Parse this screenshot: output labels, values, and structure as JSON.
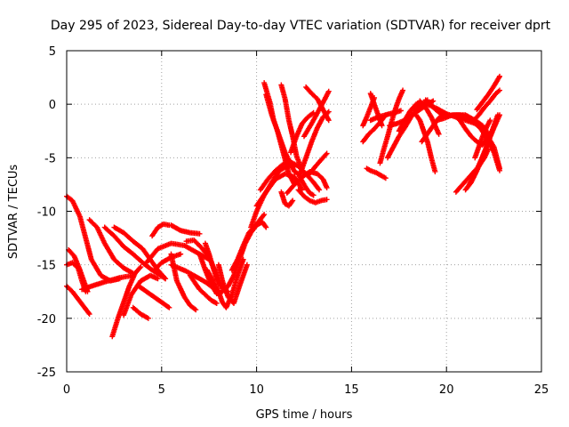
{
  "chart_data": {
    "type": "scatter",
    "title": "Day 295 of 2023, Sidereal Day-to-day VTEC variation (SDTVAR) for receiver dprt",
    "xlabel": "GPS time / hours",
    "ylabel": "SDTVAR / TECUs",
    "xlim": [
      0,
      25
    ],
    "ylim": [
      -25,
      5
    ],
    "xticks": [
      "0",
      "5",
      "10",
      "15",
      "20",
      "25"
    ],
    "yticks": [
      "-25",
      "-20",
      "-15",
      "-10",
      "-5",
      "0",
      "5"
    ],
    "grid": true,
    "legend": "none",
    "marker": "plus",
    "color": "#ff0000",
    "series": [
      {
        "x": [
          0.0,
          0.3,
          0.7,
          1.0,
          1.3,
          1.8,
          2.3,
          2.8
        ],
        "y": [
          -8.6,
          -9.0,
          -10.5,
          -12.5,
          -14.5,
          -16.0,
          -16.5,
          -16.3
        ]
      },
      {
        "x": [
          0.0,
          0.3,
          0.6,
          0.9,
          1.2
        ],
        "y": [
          -17.0,
          -17.5,
          -18.2,
          -18.9,
          -19.6
        ]
      },
      {
        "x": [
          0.0,
          0.3,
          0.6,
          0.8,
          1.0
        ],
        "y": [
          -15.0,
          -14.8,
          -15.3,
          -16.5,
          -17.5
        ]
      },
      {
        "x": [
          0.1,
          0.4,
          0.7,
          0.9,
          1.1
        ],
        "y": [
          -13.6,
          -14.2,
          -15.5,
          -16.5,
          -17.5
        ]
      },
      {
        "x": [
          0.8,
          1.3,
          2.0,
          2.8,
          3.5
        ],
        "y": [
          -17.3,
          -17.0,
          -16.6,
          -16.2,
          -16.0
        ]
      },
      {
        "x": [
          1.2,
          1.6,
          2.0,
          2.5,
          3.0,
          3.5
        ],
        "y": [
          -10.8,
          -11.5,
          -13.0,
          -14.5,
          -15.3,
          -15.8
        ]
      },
      {
        "x": [
          2.0,
          2.5,
          3.0,
          3.5,
          4.0,
          4.5,
          5.2
        ],
        "y": [
          -11.5,
          -12.3,
          -13.3,
          -14.0,
          -14.8,
          -15.5,
          -16.3
        ]
      },
      {
        "x": [
          2.4,
          2.7,
          3.0,
          3.3,
          3.6,
          3.9
        ],
        "y": [
          -21.7,
          -20.0,
          -18.5,
          -17.0,
          -15.8,
          -15.2
        ]
      },
      {
        "x": [
          2.5,
          3.0,
          3.5,
          4.0,
          4.4,
          4.8,
          5.2
        ],
        "y": [
          -11.5,
          -12.0,
          -12.8,
          -13.5,
          -14.5,
          -15.5,
          -16.3
        ]
      },
      {
        "x": [
          3.0,
          3.4,
          3.9,
          4.4,
          4.8
        ],
        "y": [
          -19.7,
          -17.8,
          -16.5,
          -16.0,
          -16.3
        ]
      },
      {
        "x": [
          3.5,
          3.7,
          3.9,
          4.1,
          4.3
        ],
        "y": [
          -19.0,
          -19.3,
          -19.6,
          -19.8,
          -20.0
        ]
      },
      {
        "x": [
          3.8,
          4.2,
          4.6,
          5.0,
          5.4
        ],
        "y": [
          -17.0,
          -17.5,
          -18.0,
          -18.5,
          -19.0
        ]
      },
      {
        "x": [
          4.2,
          4.8,
          5.5,
          6.2,
          6.8,
          7.5
        ],
        "y": [
          -14.8,
          -13.5,
          -13.0,
          -13.2,
          -13.8,
          -14.5
        ]
      },
      {
        "x": [
          4.6,
          5.0,
          5.5,
          6.0
        ],
        "y": [
          -15.5,
          -14.8,
          -14.3,
          -14.0
        ]
      },
      {
        "x": [
          4.5,
          4.8,
          5.1,
          5.4
        ],
        "y": [
          -12.3,
          -11.5,
          -11.2,
          -11.3
        ]
      },
      {
        "x": [
          5.5,
          6.0,
          6.5,
          7.0
        ],
        "y": [
          -11.3,
          -11.8,
          -12.0,
          -12.1
        ]
      },
      {
        "x": [
          5.5,
          5.9,
          6.3,
          6.7,
          7.0,
          7.3,
          7.6
        ],
        "y": [
          -15.0,
          -15.3,
          -15.6,
          -16.0,
          -16.3,
          -16.6,
          -17.0
        ]
      },
      {
        "x": [
          5.5,
          5.8,
          6.2,
          6.5,
          6.8
        ],
        "y": [
          -14.0,
          -16.5,
          -18.0,
          -18.8,
          -19.2
        ]
      },
      {
        "x": [
          6.3,
          6.7,
          7.1,
          7.5,
          7.8,
          8.1
        ],
        "y": [
          -12.8,
          -12.7,
          -13.4,
          -14.3,
          -15.5,
          -17.0
        ]
      },
      {
        "x": [
          6.5,
          6.8,
          7.0,
          7.3,
          7.6,
          7.9
        ],
        "y": [
          -16.0,
          -16.8,
          -17.3,
          -17.8,
          -18.3,
          -18.6
        ]
      },
      {
        "x": [
          7.0,
          7.3,
          7.6,
          7.9,
          8.2,
          8.5
        ],
        "y": [
          -14.0,
          -15.5,
          -16.8,
          -17.7,
          -17.5,
          -17.0
        ]
      },
      {
        "x": [
          7.3,
          7.5,
          7.7,
          7.9,
          8.2,
          8.5
        ],
        "y": [
          -13.0,
          -14.0,
          -15.2,
          -16.3,
          -17.2,
          -17.5
        ]
      },
      {
        "x": [
          7.4,
          7.7,
          8.0,
          8.2,
          8.4,
          8.7,
          9.0,
          9.3
        ],
        "y": [
          -15.5,
          -16.5,
          -17.5,
          -18.5,
          -19.0,
          -17.8,
          -16.0,
          -14.5
        ]
      },
      {
        "x": [
          8.0,
          8.2,
          8.5,
          8.8,
          9.1,
          9.5
        ],
        "y": [
          -15.0,
          -16.5,
          -18.0,
          -18.6,
          -17.0,
          -15.0
        ]
      },
      {
        "x": [
          8.5,
          8.8,
          9.1,
          9.4,
          9.7,
          10.0,
          10.3,
          10.5
        ],
        "y": [
          -17.0,
          -16.0,
          -14.5,
          -13.0,
          -12.0,
          -11.3,
          -11.0,
          -11.5
        ]
      },
      {
        "x": [
          8.7,
          9.0,
          9.3,
          9.6,
          10.0,
          10.4
        ],
        "y": [
          -15.5,
          -14.5,
          -13.2,
          -12.0,
          -11.2,
          -10.3
        ]
      },
      {
        "x": [
          9.7,
          10.0,
          10.4,
          10.8,
          11.2,
          11.6,
          12.0
        ],
        "y": [
          -11.5,
          -10.0,
          -8.5,
          -7.3,
          -6.2,
          -5.8,
          -5.7
        ]
      },
      {
        "x": [
          10.0,
          10.5,
          11.0,
          11.5,
          12.0,
          12.4
        ],
        "y": [
          -9.5,
          -8.2,
          -7.0,
          -6.5,
          -6.8,
          -8.0
        ]
      },
      {
        "x": [
          10.2,
          10.6,
          11.0,
          11.4,
          11.8,
          12.2,
          12.6,
          13.0,
          13.3
        ],
        "y": [
          -8.0,
          -7.0,
          -6.2,
          -5.6,
          -5.4,
          -5.8,
          -6.5,
          -7.3,
          -8.0
        ]
      },
      {
        "x": [
          10.4,
          10.7,
          10.9,
          11.2,
          11.5,
          11.8,
          12.0
        ],
        "y": [
          2.0,
          0.2,
          -1.5,
          -3.0,
          -4.5,
          -5.6,
          -6.3
        ]
      },
      {
        "x": [
          10.5,
          10.8,
          11.1,
          11.4,
          11.7,
          12.0
        ],
        "y": [
          0.9,
          -1.0,
          -2.5,
          -4.5,
          -6.5,
          -7.5
        ]
      },
      {
        "x": [
          11.3,
          11.5,
          11.7,
          11.9,
          12.1,
          12.4
        ],
        "y": [
          1.8,
          0.5,
          -1.5,
          -3.0,
          -4.8,
          -6.2
        ]
      },
      {
        "x": [
          11.3,
          11.5,
          11.7,
          11.9
        ],
        "y": [
          -8.2,
          -9.3,
          -9.5,
          -9.0
        ]
      },
      {
        "x": [
          11.6,
          12.0,
          12.4,
          12.8,
          13.2,
          13.5,
          13.7
        ],
        "y": [
          -8.3,
          -7.5,
          -6.8,
          -6.3,
          -6.5,
          -7.0,
          -7.8
        ]
      },
      {
        "x": [
          11.8,
          12.1,
          12.4,
          12.7,
          13.0
        ],
        "y": [
          -4.5,
          -3.0,
          -1.8,
          -1.2,
          -0.8
        ]
      },
      {
        "x": [
          12.0,
          12.2,
          12.4,
          12.6,
          12.8,
          13.0
        ],
        "y": [
          -6.3,
          -6.5,
          -7.2,
          -7.8,
          -8.3,
          -8.5
        ]
      },
      {
        "x": [
          12.2,
          12.5,
          12.8,
          13.1,
          13.4,
          13.7
        ],
        "y": [
          -8.0,
          -8.6,
          -9.0,
          -9.2,
          -9.0,
          -8.9
        ]
      },
      {
        "x": [
          12.3,
          12.6,
          12.9,
          13.2,
          13.5,
          13.8
        ],
        "y": [
          -6.5,
          -5.0,
          -3.5,
          -2.2,
          -1.2,
          -0.7
        ]
      },
      {
        "x": [
          12.5,
          12.9,
          13.3,
          13.6,
          13.8
        ],
        "y": [
          -3.0,
          -1.8,
          -0.5,
          0.5,
          1.2
        ]
      },
      {
        "x": [
          12.6,
          12.9,
          13.2,
          13.5,
          13.8
        ],
        "y": [
          1.6,
          1.0,
          0.5,
          -0.5,
          -1.5
        ]
      },
      {
        "x": [
          12.8,
          13.1,
          13.4,
          13.7
        ],
        "y": [
          -6.5,
          -5.8,
          -5.2,
          -4.6
        ]
      },
      {
        "x": [
          15.6,
          15.8,
          16.0,
          16.2
        ],
        "y": [
          -2.0,
          -1.2,
          -0.3,
          0.6
        ]
      },
      {
        "x": [
          15.6,
          15.9,
          16.2,
          16.5,
          16.8
        ],
        "y": [
          -3.5,
          -2.8,
          -2.3,
          -1.7,
          -1.0
        ]
      },
      {
        "x": [
          15.8,
          16.0,
          16.3,
          16.6,
          16.8
        ],
        "y": [
          -6.0,
          -6.2,
          -6.4,
          -6.7,
          -6.9
        ]
      },
      {
        "x": [
          16.0,
          16.4,
          16.8,
          17.2,
          17.6
        ],
        "y": [
          -1.5,
          -1.2,
          -1.0,
          -0.8,
          -0.6
        ]
      },
      {
        "x": [
          16.0,
          16.2,
          16.4,
          16.6
        ],
        "y": [
          1.0,
          0.0,
          -1.0,
          -2.0
        ]
      },
      {
        "x": [
          16.5,
          16.7,
          16.9,
          17.1,
          17.3,
          17.5,
          17.7
        ],
        "y": [
          -5.5,
          -4.2,
          -3.0,
          -1.7,
          -0.5,
          0.5,
          1.3
        ]
      },
      {
        "x": [
          16.9,
          17.2,
          17.5,
          17.8,
          18.1,
          18.4,
          18.7,
          19.0
        ],
        "y": [
          -5.0,
          -4.0,
          -3.0,
          -2.2,
          -1.3,
          -0.5,
          0.0,
          0.4
        ]
      },
      {
        "x": [
          17.0,
          17.4,
          17.8,
          18.2,
          18.6,
          19.0,
          19.3
        ],
        "y": [
          -2.0,
          -1.8,
          -1.5,
          -1.0,
          -0.5,
          0.0,
          0.3
        ]
      },
      {
        "x": [
          17.5,
          17.8,
          18.1,
          18.4,
          18.6,
          18.8
        ],
        "y": [
          -2.5,
          -1.5,
          -0.6,
          0.0,
          0.2,
          0.0
        ]
      },
      {
        "x": [
          18.4,
          18.6,
          18.8,
          19.0,
          19.2,
          19.4
        ],
        "y": [
          -1.0,
          -1.5,
          -2.5,
          -3.5,
          -5.0,
          -6.3
        ]
      },
      {
        "x": [
          18.6,
          18.9,
          19.2,
          19.4,
          19.6
        ],
        "y": [
          0.3,
          -0.3,
          -1.2,
          -2.0,
          -2.8
        ]
      },
      {
        "x": [
          18.6,
          19.0,
          19.5,
          20.0,
          20.5,
          21.0,
          21.5,
          22.0,
          22.5,
          22.8
        ],
        "y": [
          -0.2,
          0.0,
          -0.4,
          -0.9,
          -1.2,
          -1.5,
          -1.8,
          -2.5,
          -4.0,
          -6.0
        ]
      },
      {
        "x": [
          18.9,
          19.3,
          19.7,
          20.1,
          20.5,
          21.0,
          21.5,
          22.0,
          22.5,
          22.8
        ],
        "y": [
          0.4,
          -0.3,
          -0.9,
          -1.1,
          -1.0,
          -1.0,
          -1.5,
          -2.8,
          -4.5,
          -6.2
        ]
      },
      {
        "x": [
          18.7,
          18.9,
          19.1,
          19.3,
          19.5,
          19.7,
          19.9
        ],
        "y": [
          -3.5,
          -3.0,
          -2.5,
          -2.0,
          -1.5,
          -1.1,
          -0.8
        ]
      },
      {
        "x": [
          19.5,
          19.9,
          20.3,
          20.7,
          21.1,
          21.5,
          21.9,
          22.3
        ],
        "y": [
          -1.5,
          -1.3,
          -1.0,
          -1.0,
          -1.2,
          -1.5,
          -2.0,
          -3.0
        ]
      },
      {
        "x": [
          20.4,
          20.7,
          21.0,
          21.3,
          21.6,
          21.9,
          22.1
        ],
        "y": [
          -1.0,
          -1.5,
          -2.3,
          -3.0,
          -3.5,
          -3.8,
          -3.3
        ]
      },
      {
        "x": [
          20.5,
          20.8,
          21.1,
          21.4,
          21.7,
          22.0,
          22.2
        ],
        "y": [
          -8.2,
          -7.6,
          -7.0,
          -6.4,
          -5.8,
          -5.0,
          -4.2
        ]
      },
      {
        "x": [
          21.0,
          21.3,
          21.6,
          21.9,
          22.2,
          22.5,
          22.8
        ],
        "y": [
          -8.0,
          -7.3,
          -6.2,
          -5.0,
          -3.5,
          -2.2,
          -1.0
        ]
      },
      {
        "x": [
          21.2,
          21.5,
          21.8,
          22.1,
          22.4,
          22.7
        ],
        "y": [
          -7.5,
          -6.5,
          -5.3,
          -4.0,
          -2.5,
          -1.0
        ]
      },
      {
        "x": [
          21.5,
          21.7,
          21.9,
          22.1,
          22.3
        ],
        "y": [
          -5.0,
          -4.0,
          -3.0,
          -2.2,
          -1.5
        ]
      },
      {
        "x": [
          21.4,
          21.7,
          22.0,
          22.3,
          22.6,
          22.8
        ],
        "y": [
          -1.6,
          -1.0,
          -0.3,
          0.3,
          1.0,
          1.3
        ]
      },
      {
        "x": [
          21.6,
          21.9,
          22.2,
          22.5,
          22.8
        ],
        "y": [
          -0.5,
          0.2,
          0.9,
          1.7,
          2.6
        ]
      }
    ]
  }
}
